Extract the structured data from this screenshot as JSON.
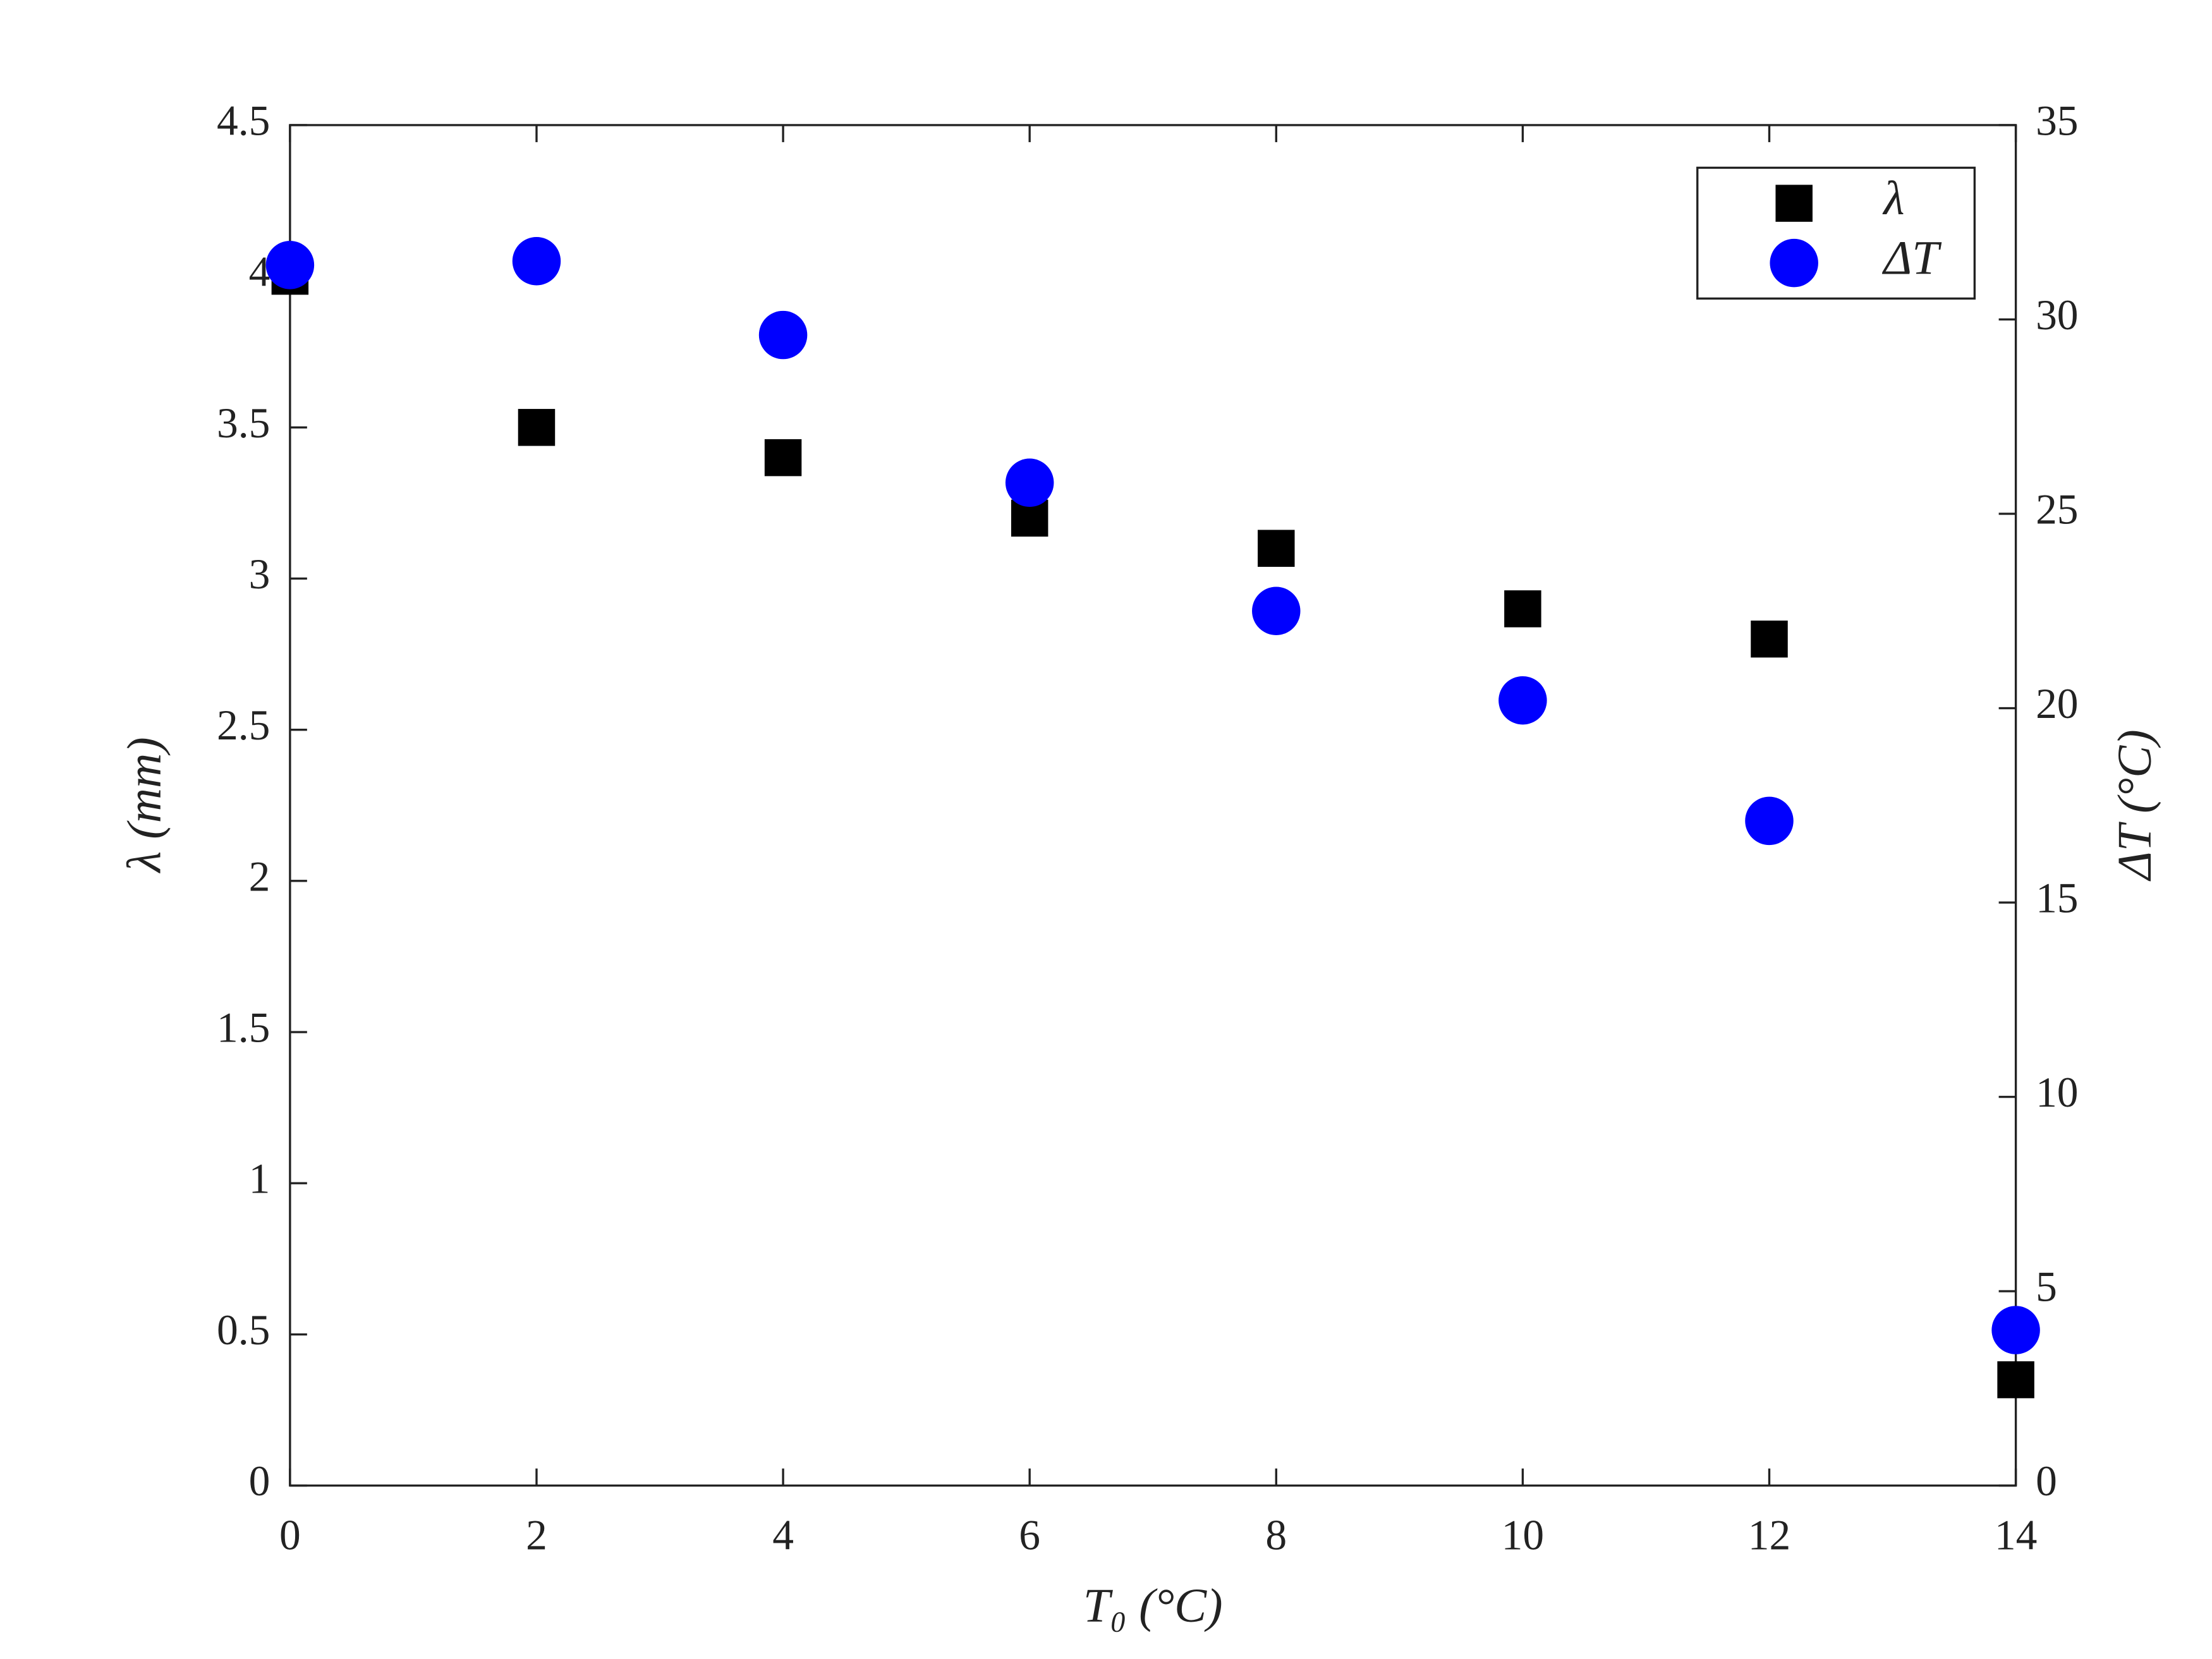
{
  "chart_data": {
    "type": "scatter",
    "x_label": "T₀ (°C)",
    "y_label": "λ (mm)",
    "y2_label": "ΔT (°C)",
    "x": [
      0,
      2,
      4,
      6,
      8,
      10,
      12,
      14
    ],
    "series": [
      {
        "name": "λ",
        "color": "#000000",
        "marker": "square",
        "values": [
          4.0,
          3.5,
          3.4,
          3.2,
          3.1,
          2.9,
          2.8,
          0.35
        ]
      },
      {
        "name": "ΔT",
        "color": "#0000ff",
        "marker": "circle",
        "axis": "y2",
        "values": [
          31.4,
          31.5,
          29.6,
          25.8,
          22.5,
          20.2,
          17.1,
          4.0
        ]
      }
    ],
    "xlim": [
      0,
      14
    ],
    "xticks": [
      0,
      2,
      4,
      6,
      8,
      10,
      12,
      14
    ],
    "ylim": [
      0,
      4.5
    ],
    "yticks": [
      0,
      0.5,
      1,
      1.5,
      2,
      2.5,
      3,
      3.5,
      4,
      4.5
    ],
    "y2lim": [
      0,
      35
    ],
    "y2ticks": [
      0,
      5,
      10,
      15,
      20,
      25,
      30,
      35
    ],
    "legend": "upper right",
    "grid": false
  }
}
